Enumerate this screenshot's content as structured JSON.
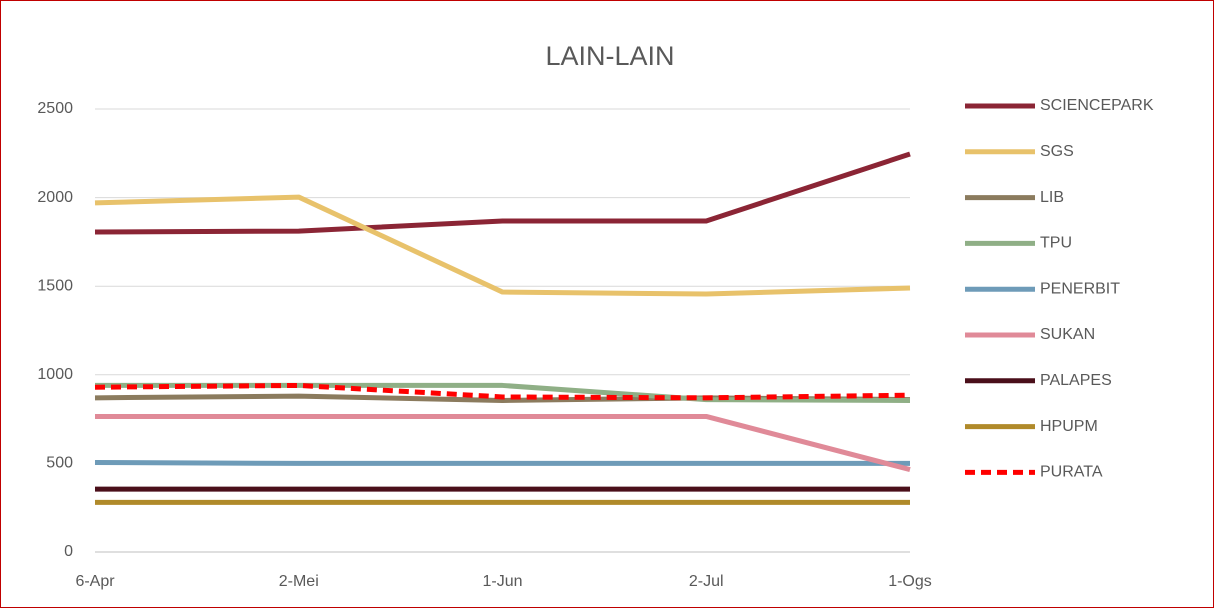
{
  "chart_data": {
    "type": "line",
    "title": "LAIN-LAIN",
    "categories": [
      "6-Apr",
      "2-Mei",
      "1-Jun",
      "2-Jul",
      "1-Ogs"
    ],
    "ylim": [
      0,
      2500
    ],
    "yticks": [
      0,
      500,
      1000,
      1500,
      2000,
      2500
    ],
    "grid": true,
    "legend": "right",
    "series": [
      {
        "name": "SCIENCEPARK",
        "color": "#8b2535",
        "values": [
          1806,
          1811,
          1868,
          1868,
          2246
        ]
      },
      {
        "name": "SGS",
        "color": "#e8c26b",
        "values": [
          1970,
          2003,
          1467,
          1456,
          1490
        ]
      },
      {
        "name": "LIB",
        "color": "#8b7b5e",
        "values": [
          870,
          880,
          855,
          870,
          860
        ]
      },
      {
        "name": "TPU",
        "color": "#8faf86",
        "values": [
          940,
          940,
          940,
          860,
          855
        ]
      },
      {
        "name": "PENERBIT",
        "color": "#6e9bb8",
        "values": [
          505,
          500,
          500,
          500,
          500
        ]
      },
      {
        "name": "SUKAN",
        "color": "#e08a98",
        "values": [
          765,
          765,
          765,
          765,
          465
        ]
      },
      {
        "name": "PALAPES",
        "color": "#4a0f1a",
        "values": [
          355,
          355,
          355,
          355,
          355
        ]
      },
      {
        "name": "HPUPM",
        "color": "#b08a2a",
        "values": [
          280,
          280,
          280,
          280,
          280
        ]
      },
      {
        "name": "PURATA",
        "color": "#ff0000",
        "dashed": true,
        "values": [
          930,
          940,
          875,
          870,
          885
        ]
      }
    ]
  }
}
